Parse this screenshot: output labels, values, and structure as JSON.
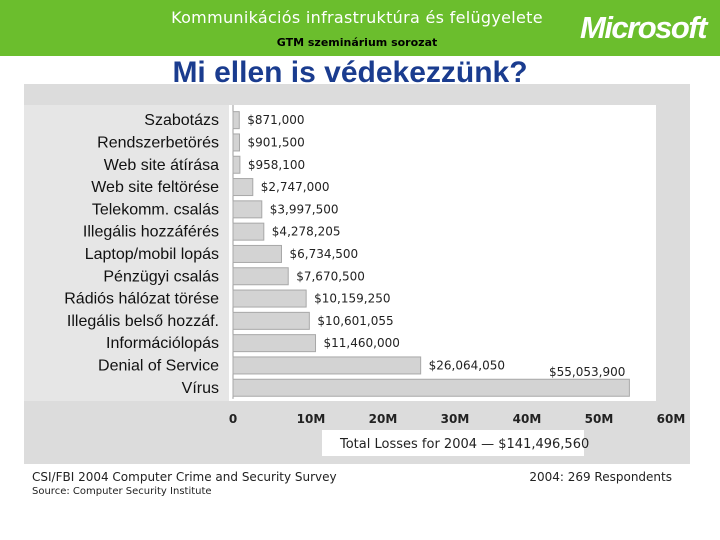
{
  "header": {
    "title": "Kommunikációs infrastruktúra és felügyelete",
    "subtitle": "GTM szeminárium sorozat",
    "logo_text": "Microsoft",
    "banner_color": "#6bbe2d"
  },
  "slide": {
    "title": "Mi ellen is védekezzünk?",
    "title_color": "#1a3c8f"
  },
  "chart_data": {
    "type": "bar",
    "orientation": "horizontal",
    "categories": [
      "Szabotázs",
      "Rendszerbetörés",
      "Web site átírása",
      "Web site feltörése",
      "Telekomm. csalás",
      "Illegális hozzáférés",
      "Laptop/mobil lopás",
      "Pénzügyi csalás",
      "Rádiós hálózat törése",
      "Illegális belső hozzáf.",
      "Információlopás",
      "Denial of Service",
      "Vírus"
    ],
    "values": [
      871000,
      901500,
      958100,
      2747000,
      3997500,
      4278205,
      6734500,
      7670500,
      10159250,
      10601055,
      11460000,
      26064050,
      55053900
    ],
    "value_labels": [
      "$871,000",
      "$901,500",
      "$958,100",
      "$2,747,000",
      "$3,997,500",
      "$4,278,205",
      "$6,734,500",
      "$7,670,500",
      "$10,159,250",
      "$10,601,055",
      "$11,460,000",
      "$26,064,050",
      "$55,053,900"
    ],
    "xlim": [
      0,
      60000000
    ],
    "xticks": [
      "0",
      "10M",
      "20M",
      "30M",
      "40M",
      "50M",
      "60M"
    ],
    "total_label": "Total Losses for 2004 — $141,496,560",
    "bar_color": "#d3d3d3",
    "bar_edge_color": "#a8a8a8",
    "grid": false
  },
  "footer": {
    "survey": "CSI/FBI 2004 Computer Crime and Security Survey",
    "source": "Source: Computer Security Institute",
    "respondents": "2004: 269 Respondents"
  }
}
